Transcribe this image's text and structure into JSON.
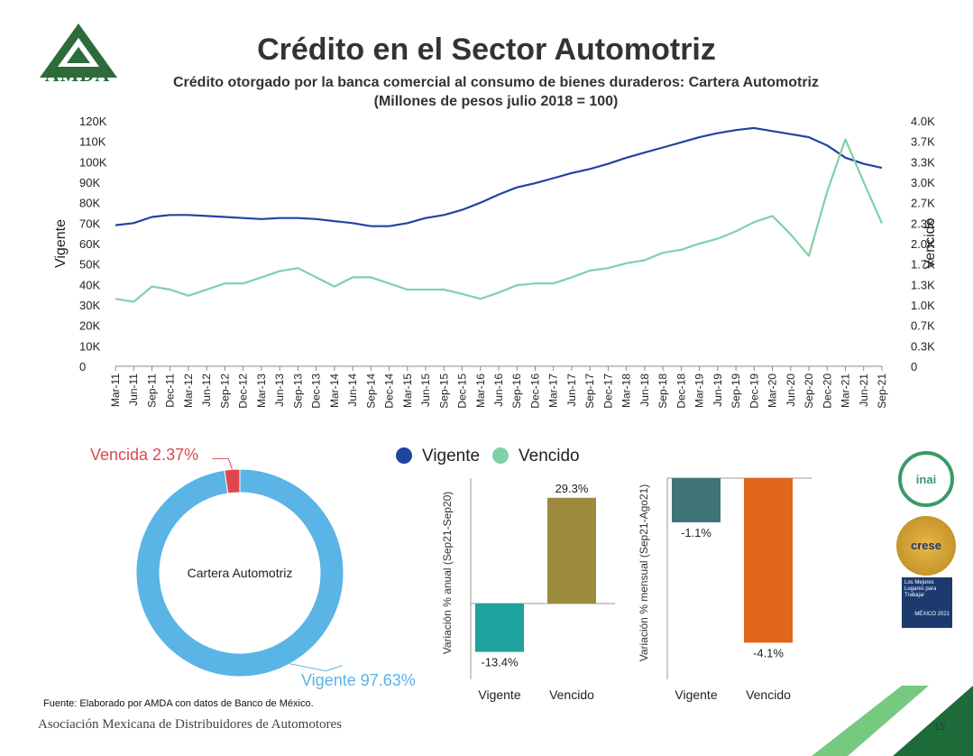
{
  "header": {
    "title": "Crédito en el Sector Automotriz",
    "subtitle_line1": "Crédito otorgado por la banca comercial al consumo de bienes duraderos: Cartera Automotriz",
    "subtitle_line2": "(Millones de pesos julio 2018 = 100)",
    "logo_text": "AMDA"
  },
  "footer": {
    "source": "Fuente: Elaborado por AMDA con datos de Banco de México.",
    "organization": "Asociación Mexicana de Distribuidores de Automotores",
    "page_number": "15"
  },
  "badges": {
    "inai": "inai",
    "crese": "crese",
    "gptw_line1": "Los Mejores",
    "gptw_line2": "Lugares para",
    "gptw_line3": "Trabajar",
    "gptw_line4": "MÉXICO 2021"
  },
  "colors": {
    "vigente_line": "#1f45a0",
    "vencido_line": "#7fd1a8",
    "donut_vigente": "#5ab4e5",
    "donut_vencida": "#e0474c",
    "bar_vigente_anual": "#20a39e",
    "bar_vencido_anual": "#9c8a3e",
    "bar_vigente_mensual": "#3e7475",
    "bar_vencido_mensual": "#e0661b"
  },
  "chart_data": [
    {
      "type": "line",
      "id": "time-series",
      "x": [
        "Mar-11",
        "Jun-11",
        "Sep-11",
        "Dec-11",
        "Mar-12",
        "Jun-12",
        "Sep-12",
        "Dec-12",
        "Mar-13",
        "Jun-13",
        "Sep-13",
        "Dec-13",
        "Mar-14",
        "Jun-14",
        "Sep-14",
        "Dec-14",
        "Mar-15",
        "Jun-15",
        "Sep-15",
        "Dec-15",
        "Mar-16",
        "Jun-16",
        "Sep-16",
        "Dec-16",
        "Mar-17",
        "Jun-17",
        "Sep-17",
        "Dec-17",
        "Mar-18",
        "Jun-18",
        "Sep-18",
        "Dec-18",
        "Mar-19",
        "Jun-19",
        "Sep-19",
        "Dec-19",
        "Mar-20",
        "Jun-20",
        "Sep-20",
        "Dec-20",
        "Mar-21",
        "Jun-21",
        "Sep-21"
      ],
      "series": [
        {
          "name": "Vigente",
          "axis": "left",
          "values": [
            69000,
            70000,
            73000,
            74000,
            74000,
            73500,
            73000,
            72500,
            72000,
            72500,
            72500,
            72000,
            71000,
            70000,
            68500,
            68500,
            70000,
            72500,
            74000,
            76500,
            80000,
            84000,
            87500,
            89500,
            92000,
            94500,
            96500,
            99000,
            102000,
            104500,
            107000,
            109500,
            112000,
            114000,
            115500,
            116500,
            115000,
            113500,
            112000,
            108000,
            102000,
            99000,
            97000
          ]
        },
        {
          "name": "Vencido",
          "axis": "right",
          "values": [
            1100,
            1050,
            1300,
            1250,
            1150,
            1250,
            1350,
            1350,
            1450,
            1550,
            1600,
            1450,
            1300,
            1450,
            1450,
            1350,
            1250,
            1250,
            1250,
            1180,
            1100,
            1200,
            1320,
            1350,
            1350,
            1450,
            1560,
            1600,
            1680,
            1730,
            1850,
            1900,
            2000,
            2080,
            2200,
            2350,
            2450,
            2150,
            1800,
            2850,
            3700,
            3000,
            2330
          ]
        }
      ],
      "left_axis": {
        "label": "Vigente",
        "range": [
          0,
          120000
        ],
        "ticks": [
          "0",
          "10K",
          "20K",
          "30K",
          "40K",
          "50K",
          "60K",
          "70K",
          "80K",
          "90K",
          "100K",
          "110K",
          "120K"
        ]
      },
      "right_axis": {
        "label": "Vencido",
        "range": [
          0,
          4000
        ],
        "ticks": [
          "0",
          "0.3K",
          "0.7K",
          "1.0K",
          "1.3K",
          "1.7K",
          "2.0K",
          "2.3K",
          "2.7K",
          "3.0K",
          "3.3K",
          "3.7K",
          "4.0K"
        ]
      },
      "legend": [
        "Vigente",
        "Vencido"
      ],
      "legend_position": "bottom"
    },
    {
      "type": "pie",
      "id": "donut",
      "center_label": "Cartera Automotriz",
      "slices": [
        {
          "name": "Vigente",
          "value": 97.63,
          "label": "Vigente 97.63%"
        },
        {
          "name": "Vencida",
          "value": 2.37,
          "label": "Vencida 2.37%"
        }
      ]
    },
    {
      "type": "bar",
      "id": "anual",
      "ylabel": "Variación % anual (Sep21-Sep20)",
      "categories": [
        "Vigente",
        "Vencido"
      ],
      "values": [
        -13.4,
        29.3
      ],
      "labels": [
        "-13.4%",
        "29.3%"
      ]
    },
    {
      "type": "bar",
      "id": "mensual",
      "ylabel": "Variación % mensual (Sep21-Ago21)",
      "categories": [
        "Vigente",
        "Vencido"
      ],
      "values": [
        -1.1,
        -4.1
      ],
      "labels": [
        "-1.1%",
        "-4.1%"
      ]
    }
  ]
}
